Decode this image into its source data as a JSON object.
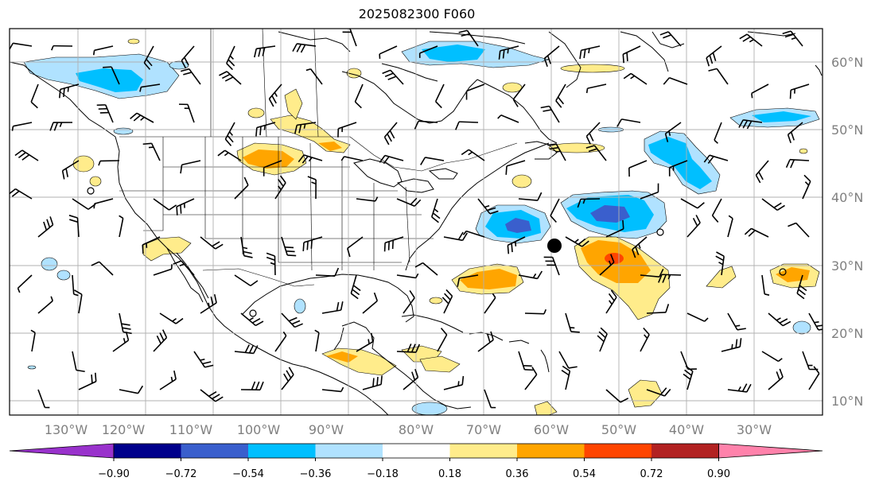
{
  "title": "2025082300 F060",
  "lon_labels": [
    "130°W",
    "120°W",
    "110°W",
    "100°W",
    "90°W",
    "80°W",
    "70°W",
    "60°W",
    "50°W",
    "40°W",
    "30°W"
  ],
  "lat_labels": [
    "60°N",
    "50°N",
    "40°N",
    "30°N",
    "20°N",
    "10°N"
  ],
  "colorbar": {
    "ticks": [
      "−0.90",
      "−0.72",
      "−0.54",
      "−0.36",
      "−0.18",
      "0.18",
      "0.36",
      "0.54",
      "0.72",
      "0.90"
    ],
    "colors": [
      "#9932cc",
      "#00008b",
      "#3a5fcd",
      "#00bfff",
      "#b0e2ff",
      "#ffffff",
      "#ffec8b",
      "#ffa500",
      "#ff4500",
      "#b22222",
      "#ff82ab"
    ]
  },
  "colors": {
    "light_blue": "#b0e2ff",
    "blue": "#00bfff",
    "royal_blue": "#3a5fcd",
    "yellow": "#ffec8b",
    "orange": "#ffa500",
    "red_orange": "#ff4500",
    "grid": "#b0b0b0",
    "label_gray": "#808080"
  },
  "marker": {
    "name": "storm-center",
    "lon": "60°W",
    "lat": "33°N"
  }
}
